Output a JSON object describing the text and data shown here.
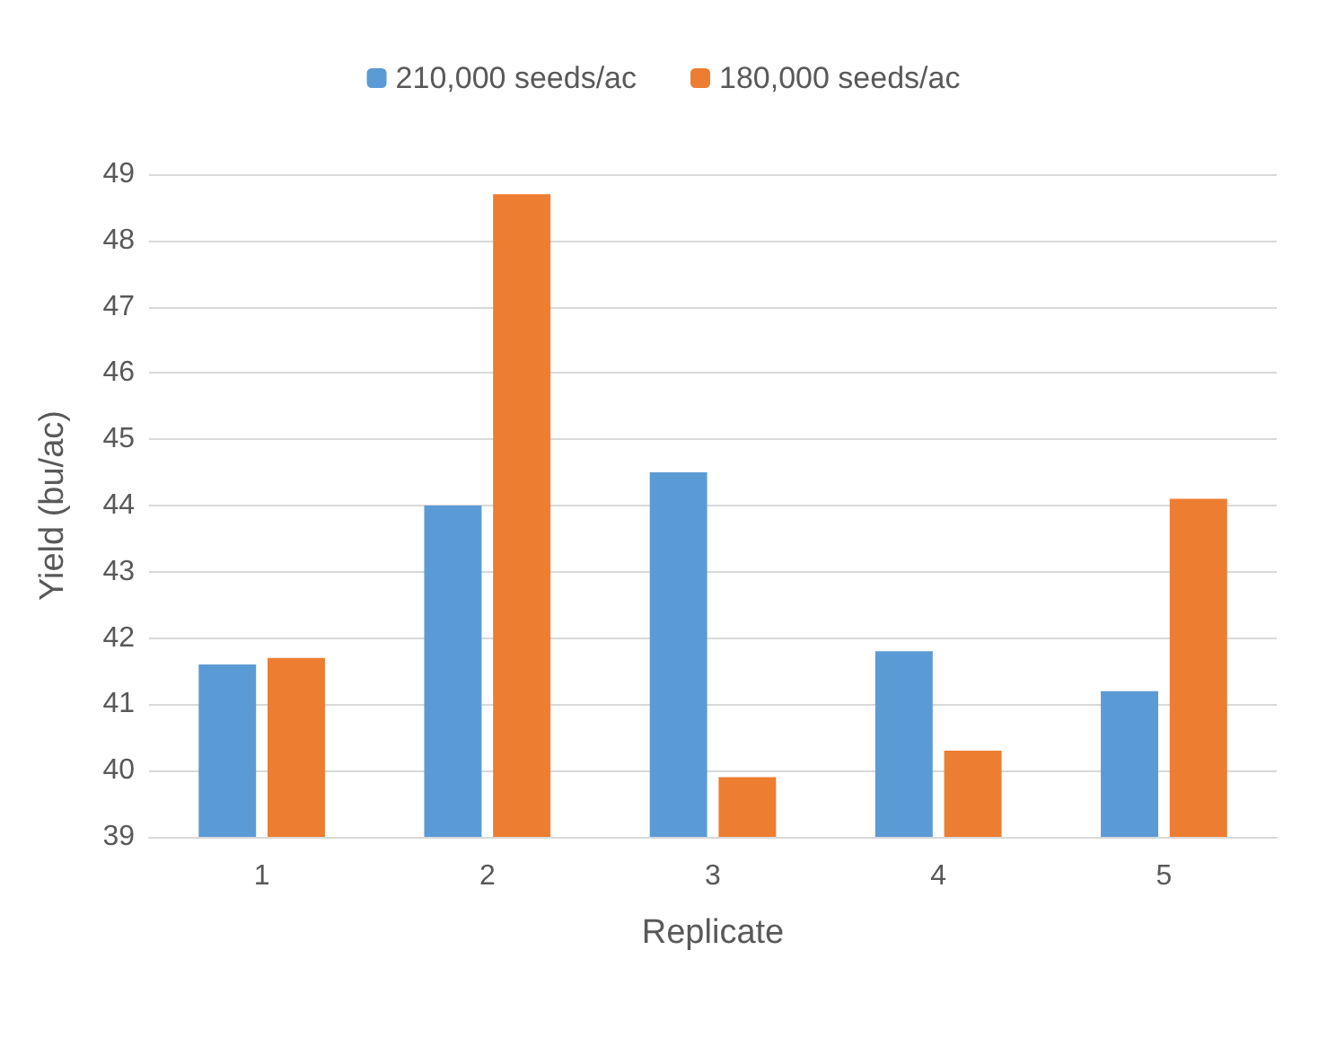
{
  "chart_data": {
    "type": "bar",
    "xlabel": "Replicate",
    "ylabel": "Yield (bu/ac)",
    "categories": [
      "1",
      "2",
      "3",
      "4",
      "5"
    ],
    "series": [
      {
        "name": "210,000 seeds/ac",
        "color": "#5b9bd5",
        "values": [
          41.6,
          44.0,
          44.5,
          41.8,
          41.2
        ]
      },
      {
        "name": "180,000 seeds/ac",
        "color": "#ed7d31",
        "values": [
          41.7,
          48.7,
          39.9,
          40.3,
          44.1
        ]
      }
    ],
    "ylim": [
      39,
      49
    ],
    "yticks": [
      39,
      40,
      41,
      42,
      43,
      44,
      45,
      46,
      47,
      48,
      49
    ],
    "grid": "y",
    "legend": "top"
  }
}
